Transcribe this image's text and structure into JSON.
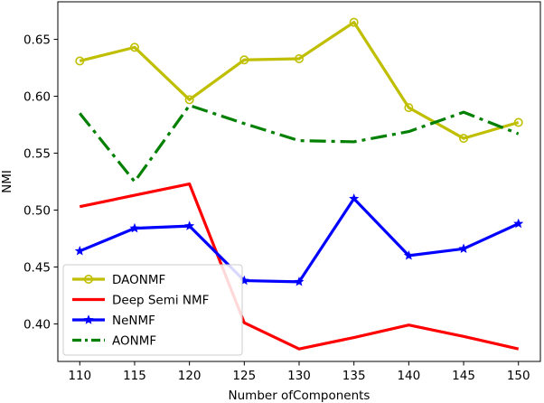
{
  "chart_data": {
    "type": "line",
    "title": "",
    "xlabel": "Number ofComponents",
    "ylabel": "NMI",
    "x": [
      110,
      115,
      120,
      125,
      130,
      135,
      140,
      145,
      150
    ],
    "xlim": [
      108,
      152
    ],
    "ylim": [
      0.367,
      0.683
    ],
    "xticks": [
      "110",
      "115",
      "120",
      "125",
      "130",
      "135",
      "140",
      "145",
      "150"
    ],
    "yticks": [
      "0.40",
      "0.45",
      "0.50",
      "0.55",
      "0.60",
      "0.65"
    ],
    "grid": false,
    "legend_position": "bottom-left",
    "series": [
      {
        "name": "DAONMF",
        "color": "#bfbf00",
        "line_style": "solid",
        "marker": "circle",
        "values": [
          0.631,
          0.643,
          0.597,
          0.632,
          0.633,
          0.665,
          0.59,
          0.563,
          0.577
        ]
      },
      {
        "name": "Deep Semi NMF",
        "color": "#ff0000",
        "line_style": "solid",
        "marker": "none",
        "values": [
          0.503,
          0.513,
          0.523,
          0.401,
          0.378,
          0.388,
          0.399,
          0.389,
          0.378
        ]
      },
      {
        "name": "NeNMF",
        "color": "#0000ff",
        "line_style": "solid",
        "marker": "star",
        "values": [
          0.464,
          0.484,
          0.486,
          0.438,
          0.437,
          0.51,
          0.46,
          0.466,
          0.488
        ]
      },
      {
        "name": "AONMF",
        "color": "#008000",
        "line_style": "dashdot",
        "marker": "none",
        "values": [
          0.585,
          0.525,
          0.592,
          0.576,
          0.561,
          0.56,
          0.569,
          0.586,
          0.567
        ]
      }
    ]
  }
}
